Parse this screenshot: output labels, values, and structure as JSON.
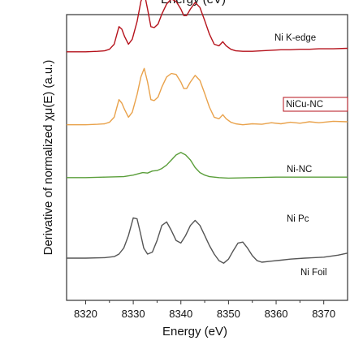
{
  "chart_data": {
    "type": "line",
    "top_clipped_text": "Energy (eV)",
    "xlabel": "Energy (eV)",
    "ylabel": "Derivative of normalized χμ(E) (a.u.)",
    "xlim": [
      8316,
      8375
    ],
    "x_ticks": [
      "8320",
      "8330",
      "8340",
      "8350",
      "8360",
      "8370"
    ],
    "y_ticks": [],
    "grid": false,
    "annotations": [
      "Ni K-edge"
    ],
    "series": [
      {
        "name": "NiCu-NC",
        "color": "#b5121b",
        "offset": 4.1,
        "label_boxed": true,
        "points": [
          [
            8316,
            0
          ],
          [
            8320,
            0
          ],
          [
            8322.5,
            0.01
          ],
          [
            8324,
            0.02
          ],
          [
            8325,
            0.05
          ],
          [
            8326,
            0.15
          ],
          [
            8327,
            0.5
          ],
          [
            8327.6,
            0.45
          ],
          [
            8328.2,
            0.3
          ],
          [
            8329,
            0.15
          ],
          [
            8329.8,
            0.25
          ],
          [
            8330.8,
            0.6
          ],
          [
            8331.6,
            1.0
          ],
          [
            8332.3,
            1.18
          ],
          [
            8333,
            0.85
          ],
          [
            8333.7,
            0.5
          ],
          [
            8334.4,
            0.48
          ],
          [
            8335.2,
            0.55
          ],
          [
            8336,
            0.75
          ],
          [
            8337,
            0.95
          ],
          [
            8338,
            1.05
          ],
          [
            8339,
            1.0
          ],
          [
            8340,
            0.85
          ],
          [
            8340.6,
            0.72
          ],
          [
            8341.2,
            0.72
          ],
          [
            8342,
            0.85
          ],
          [
            8343,
            0.98
          ],
          [
            8344,
            0.88
          ],
          [
            8345,
            0.62
          ],
          [
            8346,
            0.35
          ],
          [
            8347,
            0.15
          ],
          [
            8348,
            0.12
          ],
          [
            8348.8,
            0.2
          ],
          [
            8349.5,
            0.12
          ],
          [
            8350.5,
            0.05
          ],
          [
            8351.5,
            0.02
          ],
          [
            8353,
            0.01
          ],
          [
            8355,
            0.01
          ],
          [
            8357,
            0.02
          ],
          [
            8359,
            0.03
          ],
          [
            8361,
            0.04
          ],
          [
            8363,
            0.04
          ],
          [
            8365,
            0.05
          ],
          [
            8367,
            0.05
          ],
          [
            8369,
            0.06
          ],
          [
            8372,
            0.06
          ],
          [
            8375,
            0.07
          ]
        ]
      },
      {
        "name": "Ni-NC",
        "color": "#e9a24b",
        "offset": 2.65,
        "label_boxed": false,
        "points": [
          [
            8316,
            0
          ],
          [
            8320,
            0
          ],
          [
            8322.5,
            0.01
          ],
          [
            8324,
            0.02
          ],
          [
            8325,
            0.05
          ],
          [
            8326,
            0.15
          ],
          [
            8327,
            0.5
          ],
          [
            8327.6,
            0.43
          ],
          [
            8328.2,
            0.3
          ],
          [
            8329,
            0.15
          ],
          [
            8329.8,
            0.25
          ],
          [
            8330.8,
            0.6
          ],
          [
            8331.6,
            0.95
          ],
          [
            8332.3,
            1.12
          ],
          [
            8333,
            0.85
          ],
          [
            8333.7,
            0.5
          ],
          [
            8334.4,
            0.48
          ],
          [
            8335.2,
            0.55
          ],
          [
            8336,
            0.75
          ],
          [
            8337,
            0.95
          ],
          [
            8338,
            1.02
          ],
          [
            8339,
            1.0
          ],
          [
            8340,
            0.85
          ],
          [
            8340.6,
            0.72
          ],
          [
            8341.2,
            0.72
          ],
          [
            8342,
            0.85
          ],
          [
            8343,
            0.98
          ],
          [
            8344,
            0.88
          ],
          [
            8345,
            0.62
          ],
          [
            8346,
            0.35
          ],
          [
            8347,
            0.15
          ],
          [
            8348,
            0.12
          ],
          [
            8348.8,
            0.2
          ],
          [
            8349.5,
            0.12
          ],
          [
            8350.5,
            0.05
          ],
          [
            8351.5,
            0.02
          ],
          [
            8353,
            0.0
          ],
          [
            8355,
            0.02
          ],
          [
            8357,
            0.01
          ],
          [
            8359,
            0.04
          ],
          [
            8361,
            0.02
          ],
          [
            8363,
            0.05
          ],
          [
            8365,
            0.03
          ],
          [
            8367,
            0.06
          ],
          [
            8369,
            0.04
          ],
          [
            8372,
            0.07
          ],
          [
            8375,
            0.06
          ]
        ]
      },
      {
        "name": "Ni Pc",
        "color": "#5a9e3a",
        "offset": 1.6,
        "label_boxed": false,
        "points": [
          [
            8316,
            0
          ],
          [
            8320,
            0
          ],
          [
            8324,
            0.01
          ],
          [
            8328,
            0.02
          ],
          [
            8330,
            0.05
          ],
          [
            8332,
            0.1
          ],
          [
            8333,
            0.09
          ],
          [
            8334,
            0.13
          ],
          [
            8335,
            0.14
          ],
          [
            8336,
            0.18
          ],
          [
            8337,
            0.25
          ],
          [
            8338,
            0.35
          ],
          [
            8339,
            0.45
          ],
          [
            8340,
            0.5
          ],
          [
            8341,
            0.45
          ],
          [
            8342,
            0.35
          ],
          [
            8343,
            0.2
          ],
          [
            8344,
            0.1
          ],
          [
            8345,
            0.05
          ],
          [
            8346,
            0.02
          ],
          [
            8348,
            0.0
          ],
          [
            8350,
            -0.01
          ],
          [
            8355,
            0.0
          ],
          [
            8360,
            0.01
          ],
          [
            8365,
            0.01
          ],
          [
            8370,
            0.01
          ],
          [
            8375,
            0.01
          ]
        ]
      },
      {
        "name": "Ni Foil",
        "color": "#555555",
        "offset": 0,
        "label_boxed": false,
        "points": [
          [
            8316,
            0
          ],
          [
            8320,
            0
          ],
          [
            8324,
            0.01
          ],
          [
            8326,
            0.03
          ],
          [
            8327,
            0.08
          ],
          [
            8328,
            0.2
          ],
          [
            8329,
            0.45
          ],
          [
            8330,
            0.8
          ],
          [
            8330.8,
            0.78
          ],
          [
            8331.5,
            0.5
          ],
          [
            8332.2,
            0.2
          ],
          [
            8333,
            0.08
          ],
          [
            8334,
            0.12
          ],
          [
            8335,
            0.35
          ],
          [
            8336,
            0.65
          ],
          [
            8337,
            0.72
          ],
          [
            8338,
            0.55
          ],
          [
            8339,
            0.35
          ],
          [
            8340,
            0.3
          ],
          [
            8341,
            0.45
          ],
          [
            8342,
            0.65
          ],
          [
            8343,
            0.75
          ],
          [
            8344,
            0.65
          ],
          [
            8345,
            0.45
          ],
          [
            8346,
            0.25
          ],
          [
            8347,
            0.08
          ],
          [
            8348,
            -0.05
          ],
          [
            8349,
            -0.1
          ],
          [
            8350,
            -0.02
          ],
          [
            8351,
            0.15
          ],
          [
            8352,
            0.3
          ],
          [
            8353,
            0.32
          ],
          [
            8354,
            0.2
          ],
          [
            8355,
            0.05
          ],
          [
            8356,
            -0.05
          ],
          [
            8357,
            -0.08
          ],
          [
            8359,
            -0.06
          ],
          [
            8361,
            -0.04
          ],
          [
            8363,
            -0.02
          ],
          [
            8366,
            0.0
          ],
          [
            8370,
            0.02
          ],
          [
            8373,
            0.06
          ],
          [
            8375,
            0.1
          ]
        ]
      }
    ]
  }
}
